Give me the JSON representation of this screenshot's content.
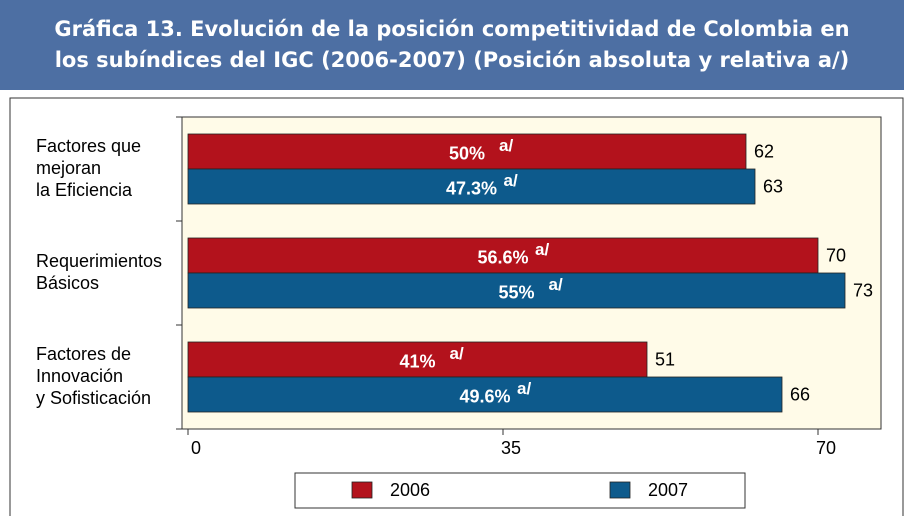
{
  "chart_data": {
    "type": "bar",
    "orientation": "horizontal",
    "title": "Gráfica 13. Evolución de la posición competitividad de Colombia en\nlos subíndices del IGC (2006-2007) (Posición absoluta y relativa a/)",
    "categories": [
      "Factores que\nmejoran\nla Eficiencia",
      "Requerimientos\nBásicos",
      "Factores de\nInnovación\ny Sofisticación"
    ],
    "series": [
      {
        "name": "2006",
        "color": "#b3121c",
        "values": [
          62,
          70,
          51
        ],
        "relative": [
          "50%",
          "56.6%",
          "41%"
        ]
      },
      {
        "name": "2007",
        "color": "#0d5a8c",
        "values": [
          63,
          73,
          66
        ],
        "relative": [
          "47.3%",
          "55%",
          "49.6%"
        ]
      }
    ],
    "note": "a/",
    "xlim": [
      0,
      77
    ],
    "xticks": [
      0,
      35,
      70
    ],
    "plot_background": "#fffbe8"
  }
}
